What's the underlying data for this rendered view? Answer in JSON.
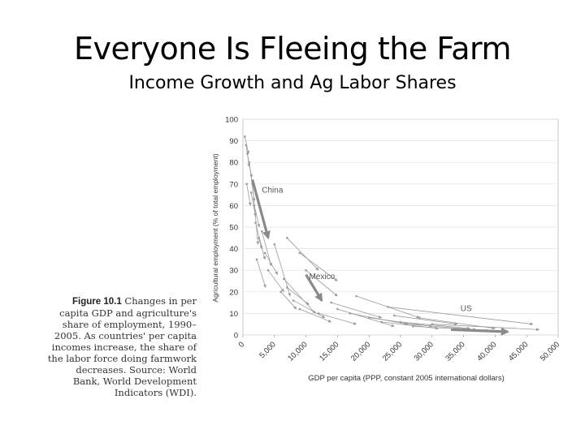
{
  "slide": {
    "title": "Everyone Is Fleeing the Farm",
    "subtitle": "Income Growth and Ag Labor Shares"
  },
  "caption": {
    "figure_label": "Figure 10.1",
    "text": "Changes in per capita GDP and agriculture's share of employment, 1990–2005. As countries' per capita incomes increase, the share of the labor force doing farmwork decreases. Source: World Bank, World Development Indicators (WDI)."
  },
  "colors": {
    "highlight": "#8a8a8a",
    "lines": "#9a9a9a",
    "grid": "#e2e2e2",
    "text": "#333333"
  },
  "chart_data": {
    "type": "scatter",
    "xlabel": "GDP per capita (PPP, constant 2005 international dollars)",
    "ylabel": "Agricultural employment (% of total employment)",
    "xlim": [
      0,
      50000
    ],
    "ylim": [
      0,
      100
    ],
    "x_ticks": [
      0,
      5000,
      10000,
      15000,
      20000,
      25000,
      30000,
      35000,
      40000,
      45000,
      50000
    ],
    "x_tick_labels": [
      "0",
      "5,000",
      "10,000",
      "15,000",
      "20,000",
      "25,000",
      "30,000",
      "35,000",
      "40,000",
      "45,000",
      "50,000"
    ],
    "y_ticks": [
      0,
      10,
      20,
      30,
      40,
      50,
      60,
      70,
      80,
      90,
      100
    ],
    "y_tick_labels": [
      "0",
      "10",
      "20",
      "30",
      "40",
      "50",
      "60",
      "70",
      "80",
      "90",
      "100"
    ],
    "grid": true,
    "annotations": [
      {
        "text": "China",
        "x": 3000,
        "y": 66
      },
      {
        "text": "Mexico",
        "x": 10500,
        "y": 26
      },
      {
        "text": "US",
        "x": 34500,
        "y": 11
      }
    ],
    "highlighted": [
      {
        "label": "China",
        "x": [
          1500,
          4000
        ],
        "y": [
          72,
          45
        ]
      },
      {
        "label": "Mexico",
        "x": [
          10000,
          12500
        ],
        "y": [
          28,
          16
        ]
      },
      {
        "label": "US",
        "x": [
          33000,
          42000
        ],
        "y": [
          2.5,
          1.5
        ]
      }
    ],
    "trajectories": [
      {
        "x": [
          300,
          900
        ],
        "y": [
          92,
          84
        ]
      },
      {
        "x": [
          500,
          1000
        ],
        "y": [
          88,
          78
        ]
      },
      {
        "x": [
          700,
          1400
        ],
        "y": [
          84,
          73
        ]
      },
      {
        "x": [
          1000,
          1800
        ],
        "y": [
          80,
          62
        ]
      },
      {
        "x": [
          600,
          1200
        ],
        "y": [
          70,
          60
        ]
      },
      {
        "x": [
          1300,
          2000
        ],
        "y": [
          66,
          55
        ]
      },
      {
        "x": [
          1500,
          2400
        ],
        "y": [
          70,
          42
        ]
      },
      {
        "x": [
          1800,
          2600
        ],
        "y": [
          60,
          50
        ]
      },
      {
        "x": [
          2000,
          3500
        ],
        "y": [
          52,
          35
        ]
      },
      {
        "x": [
          2500,
          3000
        ],
        "y": [
          45,
          40
        ]
      },
      {
        "x": [
          3000,
          4500
        ],
        "y": [
          48,
          32
        ]
      },
      {
        "x": [
          3500,
          5500
        ],
        "y": [
          38,
          28
        ]
      },
      {
        "x": [
          2200,
          3600
        ],
        "y": [
          35,
          22
        ]
      },
      {
        "x": [
          4000,
          6500
        ],
        "y": [
          30,
          20
        ]
      },
      {
        "x": [
          5000,
          7500
        ],
        "y": [
          42,
          18
        ]
      },
      {
        "x": [
          6000,
          8500
        ],
        "y": [
          20,
          12
        ]
      },
      {
        "x": [
          7000,
          10500
        ],
        "y": [
          22,
          14
        ]
      },
      {
        "x": [
          8000,
          13000
        ],
        "y": [
          16,
          8
        ]
      },
      {
        "x": [
          9000,
          14000
        ],
        "y": [
          12,
          6
        ]
      },
      {
        "x": [
          10000,
          15000
        ],
        "y": [
          30,
          18
        ]
      },
      {
        "x": [
          6500,
          11500
        ],
        "y": [
          26,
          10
        ]
      },
      {
        "x": [
          12000,
          18000
        ],
        "y": [
          10,
          5
        ]
      },
      {
        "x": [
          14000,
          22000
        ],
        "y": [
          15,
          8
        ]
      },
      {
        "x": [
          15000,
          24000
        ],
        "y": [
          12,
          4
        ]
      },
      {
        "x": [
          17000,
          26000
        ],
        "y": [
          10,
          5
        ]
      },
      {
        "x": [
          20000,
          30000
        ],
        "y": [
          8,
          4
        ]
      },
      {
        "x": [
          22000,
          31000
        ],
        "y": [
          6,
          3
        ]
      },
      {
        "x": [
          24000,
          34000
        ],
        "y": [
          9,
          5
        ]
      },
      {
        "x": [
          25000,
          36000
        ],
        "y": [
          6,
          3
        ]
      },
      {
        "x": [
          26000,
          37000
        ],
        "y": [
          5,
          2.5
        ]
      },
      {
        "x": [
          27000,
          39000
        ],
        "y": [
          4,
          2
        ]
      },
      {
        "x": [
          28000,
          40000
        ],
        "y": [
          8,
          3
        ]
      },
      {
        "x": [
          30000,
          47000
        ],
        "y": [
          5,
          2.5
        ]
      },
      {
        "x": [
          7000,
          12000
        ],
        "y": [
          45,
          30
        ]
      },
      {
        "x": [
          9000,
          15000
        ],
        "y": [
          38,
          25
        ]
      },
      {
        "x": [
          23000,
          46000
        ],
        "y": [
          13,
          5
        ]
      },
      {
        "x": [
          18000,
          28000
        ],
        "y": [
          18,
          8
        ]
      }
    ]
  }
}
